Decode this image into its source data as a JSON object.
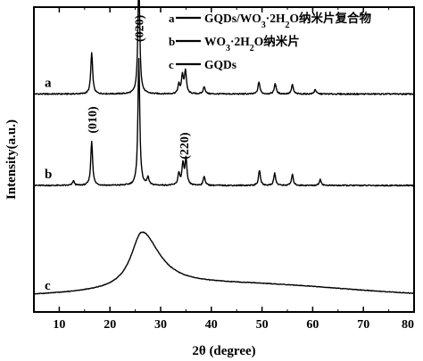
{
  "chart_data": {
    "type": "line",
    "xlabel": "2θ (degree)",
    "ylabel": "Intensity(a.u.)",
    "xlim": [
      5,
      80
    ],
    "x_ticks": [
      "10",
      "20",
      "30",
      "40",
      "50",
      "60",
      "70",
      "80"
    ],
    "y_ticks_shown": false,
    "grid": false,
    "legend_position": "top-right",
    "legend": [
      {
        "key": "a",
        "label_main": "GQDs/WO",
        "sub1": "3",
        "mid": "·2H",
        "sub2": "2",
        "tail": "O纳米片复合物"
      },
      {
        "key": "b",
        "label_main": "WO",
        "sub1": "3",
        "mid": "·2H",
        "sub2": "2",
        "tail": "O纳米片"
      },
      {
        "key": "c",
        "label_main": "GQDs",
        "sub1": "",
        "mid": "",
        "sub2": "",
        "tail": ""
      }
    ],
    "series": [
      {
        "name": "a",
        "baseline": 0.715,
        "peaks": [
          [
            16.4,
            0.135
          ],
          [
            25.7,
            0.38
          ],
          [
            33.6,
            0.03
          ],
          [
            34.3,
            0.06
          ],
          [
            34.9,
            0.075
          ],
          [
            38.6,
            0.025
          ],
          [
            49.4,
            0.04
          ],
          [
            52.6,
            0.035
          ],
          [
            56.0,
            0.03
          ],
          [
            60.5,
            0.015
          ]
        ]
      },
      {
        "name": "b",
        "baseline": 0.415,
        "peaks": [
          [
            12.8,
            0.015
          ],
          [
            16.4,
            0.145
          ],
          [
            25.7,
            0.415
          ],
          [
            27.5,
            0.025
          ],
          [
            33.6,
            0.04
          ],
          [
            34.4,
            0.07
          ],
          [
            35.0,
            0.085
          ],
          [
            38.6,
            0.03
          ],
          [
            49.5,
            0.05
          ],
          [
            52.5,
            0.04
          ],
          [
            56.0,
            0.035
          ],
          [
            61.5,
            0.02
          ]
        ]
      },
      {
        "name": "c",
        "baseline": 0.05,
        "broad_peak": {
          "center": 26.3,
          "height": 0.185
        }
      }
    ],
    "annotations": [
      {
        "text": "(010)",
        "x": 16.4
      },
      {
        "text": "(020)",
        "x": 25.7
      },
      {
        "text": "(220)",
        "x": 34.6
      }
    ]
  }
}
